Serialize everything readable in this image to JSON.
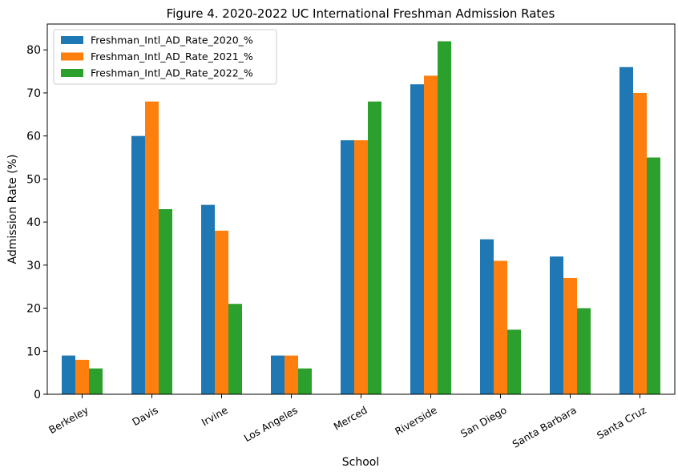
{
  "chart_data": {
    "type": "bar",
    "title": "Figure 4. 2020-2022 UC International Freshman Admission Rates",
    "xlabel": "School",
    "ylabel": "Admission Rate (%)",
    "ylim": [
      0,
      86
    ],
    "yticks": [
      0,
      10,
      20,
      30,
      40,
      50,
      60,
      70,
      80
    ],
    "grid": false,
    "legend_position": "top-left",
    "categories": [
      "Berkeley",
      "Davis",
      "Irvine",
      "Los Angeles",
      "Merced",
      "Riverside",
      "San Diego",
      "Santa Barbara",
      "Santa Cruz"
    ],
    "series": [
      {
        "name": "Freshman_Intl_AD_Rate_2020_%",
        "color": "#1f77b4",
        "values": [
          9,
          60,
          44,
          9,
          59,
          72,
          36,
          32,
          76
        ]
      },
      {
        "name": "Freshman_Intl_AD_Rate_2021_%",
        "color": "#ff7f0e",
        "values": [
          8,
          68,
          38,
          9,
          59,
          74,
          31,
          27,
          70
        ]
      },
      {
        "name": "Freshman_Intl_AD_Rate_2022_%",
        "color": "#2ca02c",
        "values": [
          6,
          43,
          21,
          6,
          68,
          82,
          15,
          20,
          55
        ]
      }
    ]
  }
}
